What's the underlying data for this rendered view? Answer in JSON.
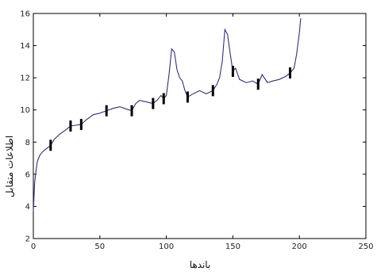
{
  "chart_data": {
    "type": "line",
    "title": "",
    "xlabel": "باندها",
    "ylabel": "اطلاعات متقابل",
    "xlim": [
      0,
      250
    ],
    "ylim": [
      2,
      16
    ],
    "xticks": [
      0,
      50,
      100,
      150,
      200,
      250
    ],
    "yticks": [
      2,
      4,
      6,
      8,
      10,
      12,
      14,
      16
    ],
    "grid": false,
    "line_color": "#303070",
    "marker_color": "#000000",
    "series": [
      {
        "x": [
          0,
          1,
          2,
          3,
          5,
          7,
          10,
          13,
          16,
          20,
          25,
          28,
          32,
          36,
          40,
          45,
          50,
          55,
          60,
          65,
          70,
          74,
          77,
          80,
          85,
          90,
          93,
          96,
          98,
          100,
          102,
          104,
          106,
          108,
          110,
          112,
          114,
          116,
          120,
          125,
          130,
          135,
          138,
          140,
          142,
          144,
          146,
          148,
          150,
          152,
          155,
          160,
          165,
          169,
          172,
          176,
          180,
          185,
          190,
          193,
          196,
          198,
          200,
          201
        ],
        "y": [
          3.7,
          5.5,
          6.2,
          6.8,
          7.2,
          7.4,
          7.6,
          7.8,
          8.2,
          8.5,
          8.8,
          9.0,
          9.05,
          9.1,
          9.4,
          9.7,
          9.8,
          9.95,
          10.1,
          10.2,
          10.05,
          9.95,
          10.4,
          10.6,
          10.5,
          10.4,
          10.6,
          10.9,
          10.7,
          10.9,
          12.2,
          13.8,
          13.6,
          12.5,
          12.0,
          11.8,
          11.2,
          10.8,
          11.0,
          11.2,
          11.0,
          11.2,
          11.6,
          12.0,
          13.0,
          15.0,
          14.7,
          13.5,
          12.4,
          12.6,
          11.9,
          11.7,
          11.8,
          11.6,
          12.2,
          11.7,
          11.8,
          11.9,
          12.1,
          12.3,
          12.6,
          13.5,
          14.8,
          15.7
        ]
      }
    ],
    "markers": [
      {
        "x": 13,
        "y": 7.8
      },
      {
        "x": 28,
        "y": 9.0
      },
      {
        "x": 36,
        "y": 9.1
      },
      {
        "x": 55,
        "y": 9.95
      },
      {
        "x": 74,
        "y": 9.95
      },
      {
        "x": 90,
        "y": 10.4
      },
      {
        "x": 98,
        "y": 10.7
      },
      {
        "x": 116,
        "y": 10.8
      },
      {
        "x": 135,
        "y": 11.2
      },
      {
        "x": 150,
        "y": 12.4
      },
      {
        "x": 169,
        "y": 11.6
      },
      {
        "x": 193,
        "y": 12.3
      }
    ]
  }
}
